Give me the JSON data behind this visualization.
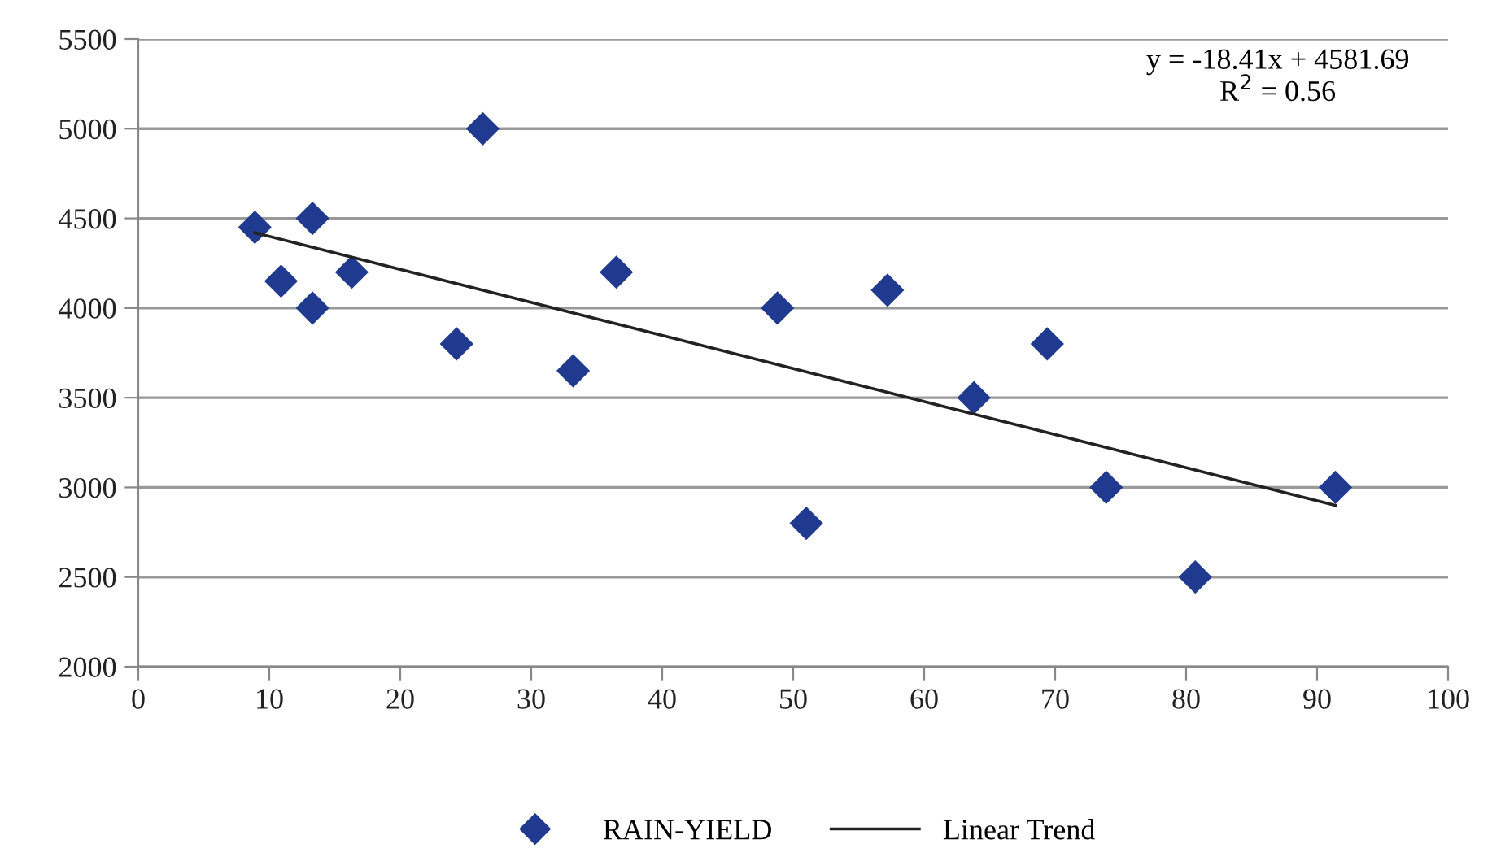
{
  "chart_data": {
    "type": "scatter",
    "series": [
      {
        "name": "RAIN-YIELD",
        "color": "#1f3a8f",
        "marker": "diamond",
        "x": [
          8.9,
          10.9,
          13.3,
          13.3,
          16.3,
          24.3,
          26.3,
          33.2,
          36.5,
          48.8,
          51.0,
          57.2,
          63.8,
          69.4,
          73.9,
          80.7,
          91.4
        ],
        "values": [
          4450,
          4150,
          4500,
          4000,
          4200,
          3800,
          5000,
          3650,
          4200,
          4000,
          2800,
          4100,
          3500,
          3800,
          3000,
          2500,
          3000
        ]
      },
      {
        "name": "Linear Trend",
        "type": "line",
        "color": "#222222",
        "marker": "none",
        "line_style": "solid",
        "x": [
          8.9,
          91.4
        ],
        "values": [
          4420,
          2900
        ]
      }
    ],
    "annotations": [
      "y = -18.41x + 4581.69",
      "R$^{2}$ = 0.56"
    ],
    "xlim": [
      0,
      100
    ],
    "xticks": [
      0,
      10,
      20,
      30,
      40,
      50,
      60,
      70,
      80,
      90,
      100
    ],
    "ylim": [
      2000,
      5500
    ],
    "yticks": [
      2000,
      2500,
      3000,
      3500,
      4000,
      4500,
      5000,
      5500
    ],
    "grid": "y",
    "legend": "bottom"
  }
}
